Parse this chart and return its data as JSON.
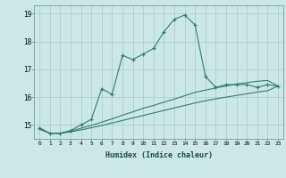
{
  "xlabel": "Humidex (Indice chaleur)",
  "x": [
    0,
    1,
    2,
    3,
    4,
    5,
    6,
    7,
    8,
    9,
    10,
    11,
    12,
    13,
    14,
    15,
    16,
    17,
    18,
    19,
    20,
    21,
    22,
    23
  ],
  "line1_y": [
    14.9,
    14.7,
    14.7,
    14.8,
    15.0,
    15.2,
    16.3,
    16.1,
    17.5,
    17.35,
    17.55,
    17.75,
    18.35,
    18.8,
    18.95,
    18.6,
    16.75,
    16.35,
    16.45,
    16.45,
    16.45,
    16.35,
    16.45,
    16.4
  ],
  "line2_y": [
    14.85,
    14.7,
    14.7,
    14.78,
    14.88,
    14.98,
    15.1,
    15.22,
    15.35,
    15.47,
    15.6,
    15.7,
    15.82,
    15.93,
    16.05,
    16.17,
    16.25,
    16.33,
    16.4,
    16.47,
    16.52,
    16.57,
    16.6,
    16.4
  ],
  "line3_y": [
    14.85,
    14.7,
    14.7,
    14.75,
    14.82,
    14.9,
    14.98,
    15.07,
    15.16,
    15.25,
    15.34,
    15.43,
    15.52,
    15.61,
    15.7,
    15.79,
    15.87,
    15.94,
    16.0,
    16.06,
    16.12,
    16.18,
    16.23,
    16.4
  ],
  "line_color": "#2e7d6e",
  "bg_color": "#cce8e6",
  "grid_color": "#aacfcc",
  "ylim": [
    14.5,
    19.3
  ],
  "yticks": [
    15,
    16,
    17,
    18,
    19
  ],
  "xticks": [
    0,
    1,
    2,
    3,
    4,
    5,
    6,
    7,
    8,
    9,
    10,
    11,
    12,
    13,
    14,
    15,
    16,
    17,
    18,
    19,
    20,
    21,
    22,
    23
  ]
}
